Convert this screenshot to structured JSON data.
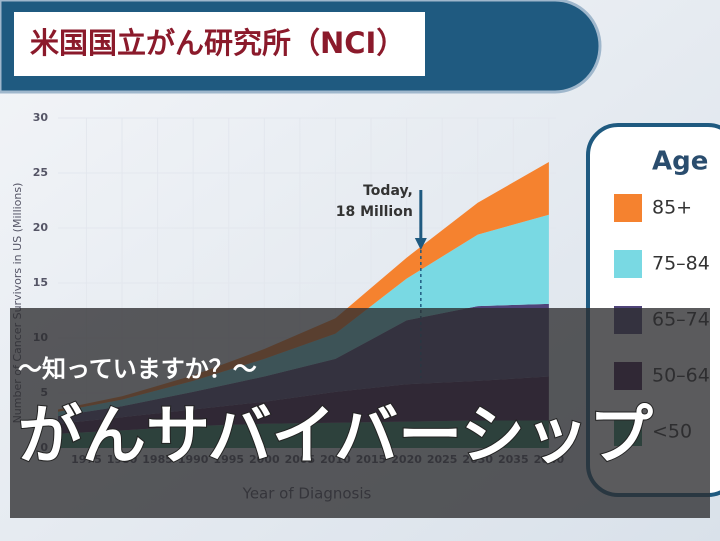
{
  "header": {
    "title": "米国国立がん研究所（NCI）"
  },
  "chart_data": {
    "type": "area",
    "stacked": true,
    "y_label": "Number of Cancer Survivors in US (Millions)",
    "x_label": "Year of Diagnosis",
    "x": [
      1971,
      1980,
      1990,
      2000,
      2010,
      2020,
      2030,
      2040
    ],
    "xlim": [
      1971,
      2041
    ],
    "xticks": [
      1975,
      1980,
      1985,
      1990,
      1995,
      2000,
      2005,
      2010,
      2015,
      2020,
      2025,
      2030,
      2035,
      2040
    ],
    "ylim": [
      0,
      30
    ],
    "yticks": [
      0,
      5,
      10,
      15,
      20,
      25,
      30
    ],
    "grid": true,
    "legend_title": "Age",
    "legend": "right",
    "series": [
      {
        "name": "85+",
        "color": "#f5822f",
        "values": [
          0.2,
          0.3,
          0.5,
          0.9,
          1.4,
          1.9,
          2.9,
          4.8
        ]
      },
      {
        "name": "75–84",
        "color": "#79d9e3",
        "values": [
          0.4,
          0.6,
          1.0,
          1.6,
          2.3,
          3.8,
          6.5,
          8.1
        ]
      },
      {
        "name": "65–74",
        "color": "#4f4479",
        "values": [
          0.7,
          1.0,
          1.6,
          2.3,
          3.0,
          5.8,
          6.8,
          6.6
        ]
      },
      {
        "name": "50–64",
        "color": "#3d1a4a",
        "values": [
          0.9,
          1.2,
          1.5,
          2.0,
          2.8,
          3.4,
          3.6,
          4.0
        ]
      },
      {
        "name": "<50",
        "color": "#2f8a68",
        "values": [
          1.3,
          1.6,
          2.0,
          2.2,
          2.3,
          2.4,
          2.5,
          2.5
        ]
      }
    ],
    "annotation": {
      "lines": [
        "Today,",
        "18 Million"
      ],
      "x": 2022,
      "y": 18
    }
  },
  "overlay": {
    "subtitle": "〜知っていますか？〜",
    "title": "がんサバイバーシップ"
  }
}
